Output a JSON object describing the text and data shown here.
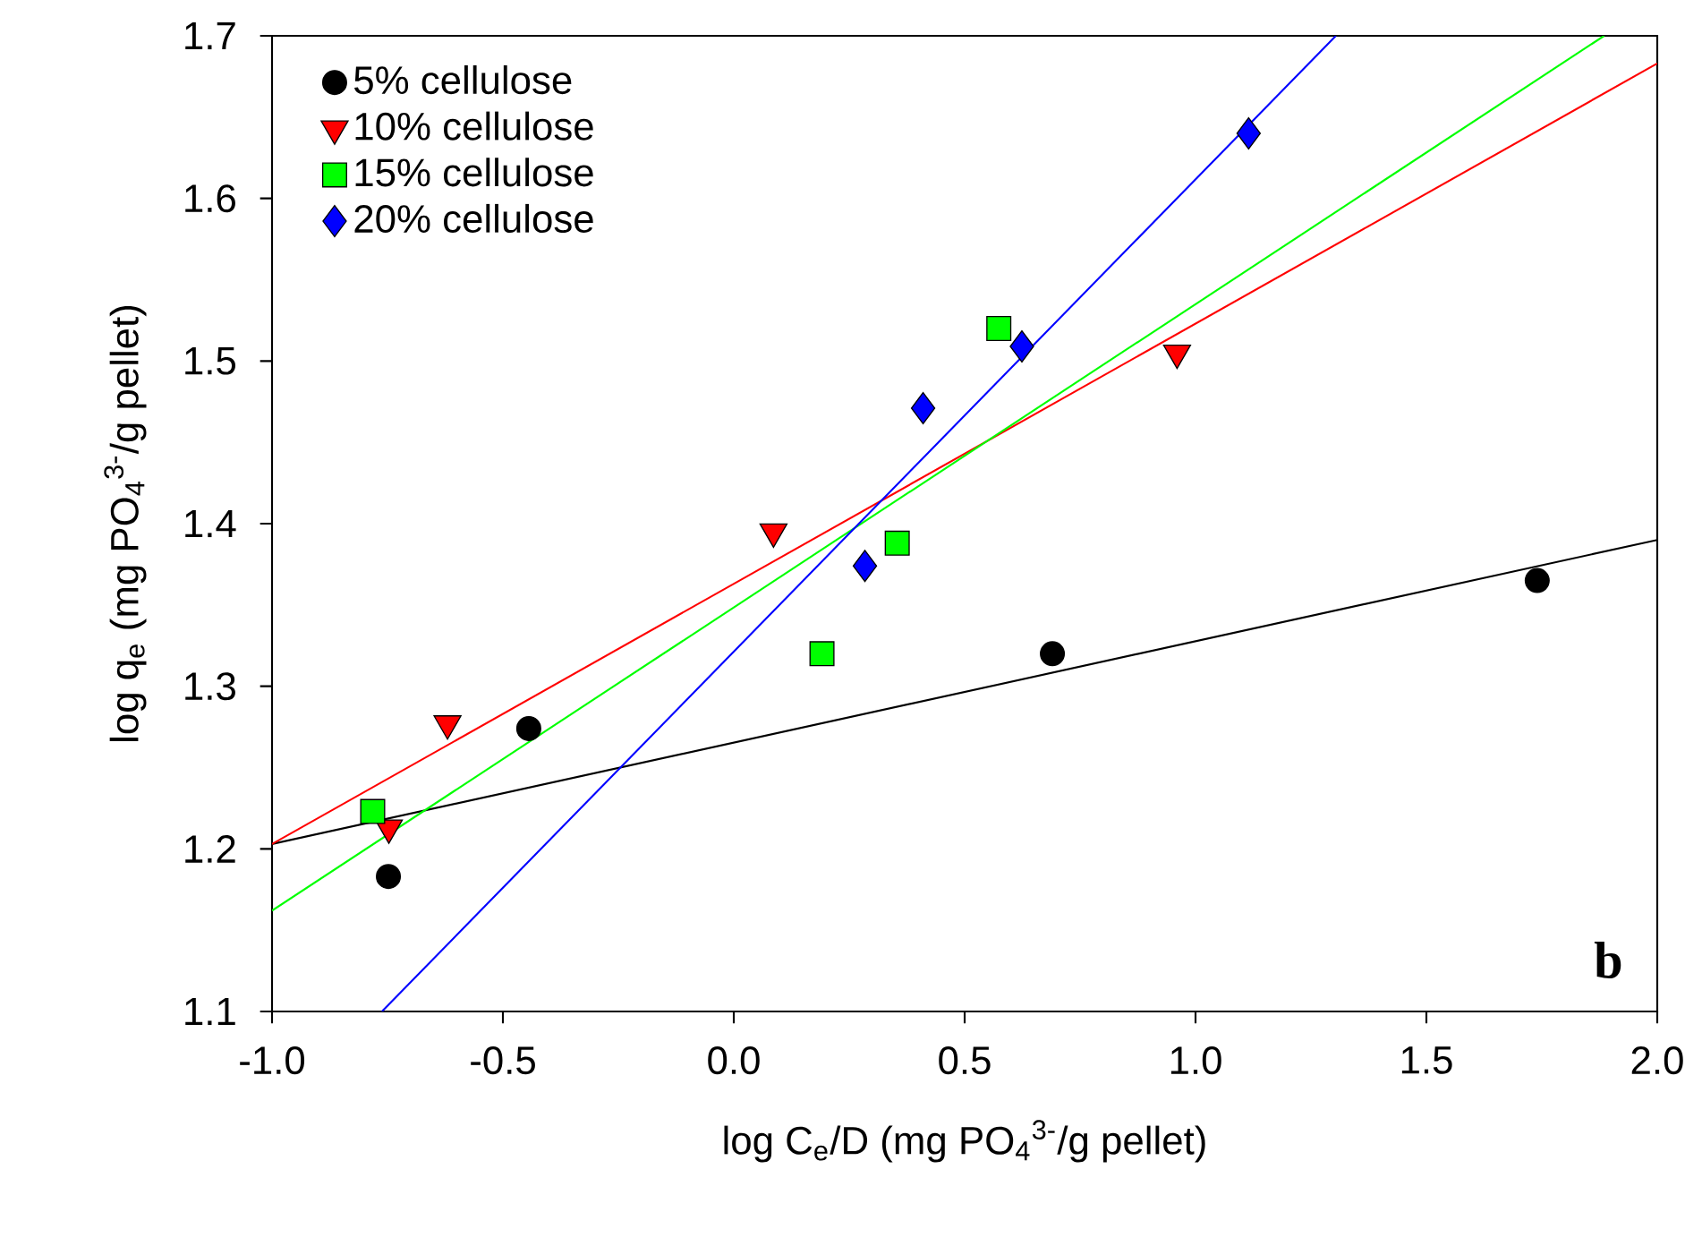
{
  "chart_data": {
    "type": "scatter",
    "xlabel": "log C$_{e}$/D (mg PO$_{4}$$^{3-}$/g pellet)",
    "ylabel": "log q$_{e}$ (mg PO$_{4}$$^{3-}$/g pellet)",
    "xlim": [
      -1.0,
      2.0
    ],
    "ylim": [
      1.1,
      1.7
    ],
    "xticks": [
      {
        "value": -1.0,
        "label": "-1.0"
      },
      {
        "value": -0.5,
        "label": "-0.5"
      },
      {
        "value": 0.0,
        "label": "0.0"
      },
      {
        "value": 0.5,
        "label": "0.5"
      },
      {
        "value": 1.0,
        "label": "1.0"
      },
      {
        "value": 1.5,
        "label": "1.5"
      },
      {
        "value": 2.0,
        "label": "2.0"
      }
    ],
    "yticks": [
      1.1,
      1.2,
      1.3,
      1.4,
      1.5,
      1.6,
      1.7
    ],
    "grid": false,
    "legend": "top left",
    "annotations": [
      "b"
    ],
    "series": [
      {
        "name": "5% cellulose",
        "color": "#000000",
        "marker": "circle",
        "x": [
          -0.748,
          -0.444,
          0.69,
          1.74
        ],
        "values": [
          1.183,
          1.274,
          1.32,
          1.365
        ]
      },
      {
        "name": "10% cellulose",
        "color": "#ff0000",
        "marker": "triangle",
        "x": [
          -0.747,
          -0.62,
          0.086,
          0.96
        ],
        "values": [
          1.213,
          1.277,
          1.395,
          1.505
        ]
      },
      {
        "name": "15% cellulose",
        "color": "#00ff00",
        "marker": "square",
        "x": [
          -0.782,
          0.191,
          0.354,
          0.574
        ],
        "values": [
          1.223,
          1.32,
          1.388,
          1.52
        ]
      },
      {
        "name": "20% cellulose",
        "color": "#0000ff",
        "marker": "diamond",
        "x": [
          0.284,
          0.41,
          0.624,
          1.115
        ],
        "values": [
          1.374,
          1.471,
          1.509,
          1.64
        ]
      },
      {
        "type": "line",
        "color": "#000000",
        "x": [
          -1.0,
          2.0
        ],
        "values": [
          1.203,
          1.39
        ]
      },
      {
        "type": "line",
        "color": "#ff0000",
        "x": [
          -1.0,
          2.0
        ],
        "values": [
          1.203,
          1.683
        ]
      },
      {
        "type": "line",
        "color": "#00ff00",
        "x": [
          -1.0,
          1.885
        ],
        "values": [
          1.162,
          1.7
        ]
      },
      {
        "type": "line",
        "color": "#0000ff",
        "x": [
          -0.762,
          1.304
        ],
        "values": [
          1.1,
          1.7
        ]
      }
    ]
  }
}
